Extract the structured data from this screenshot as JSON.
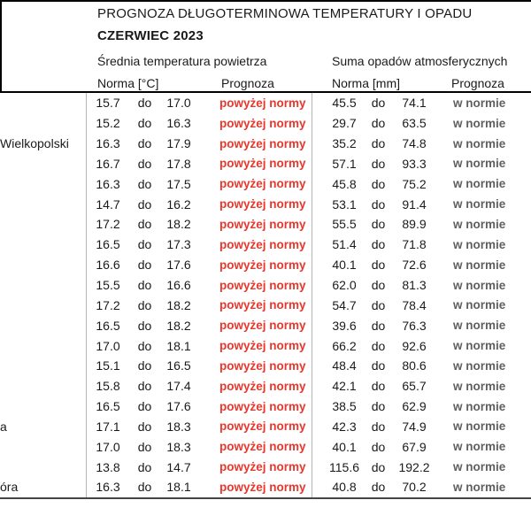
{
  "title": "PROGNOZA DŁUGOTERMINOWA TEMPERATURY I OPADU",
  "subtitle": "CZERWIEC 2023",
  "sections": {
    "temperature": {
      "header": "Średnia temperatura powietrza",
      "norma_label": "Norma [°C]",
      "prognoza_label": "Prognoza"
    },
    "precipitation": {
      "header": "Suma opadów atmosferycznych",
      "norma_label": "Norma [mm]",
      "prognoza_label": "Prognoza"
    }
  },
  "separator_word": "do",
  "colors": {
    "forecast_above_red": "#e8372c",
    "forecast_norm_gray": "#5f5f5f",
    "grid_gray": "#b5b5b5",
    "border_black": "#000000"
  },
  "rows": [
    {
      "city": "",
      "t_low": "15.7",
      "t_high": "17.0",
      "t_prog": "powyżej normy",
      "p_low": "45.5",
      "p_high": "74.1",
      "p_prog": "w normie"
    },
    {
      "city": "",
      "t_low": "15.2",
      "t_high": "16.3",
      "t_prog": "powyżej normy",
      "p_low": "29.7",
      "p_high": "63.5",
      "p_prog": "w normie"
    },
    {
      "city": "Wielkopolski",
      "t_low": "16.3",
      "t_high": "17.9",
      "t_prog": "powyżej normy",
      "p_low": "35.2",
      "p_high": "74.8",
      "p_prog": "w normie"
    },
    {
      "city": "",
      "t_low": "16.7",
      "t_high": "17.8",
      "t_prog": "powyżej normy",
      "p_low": "57.1",
      "p_high": "93.3",
      "p_prog": "w normie"
    },
    {
      "city": "",
      "t_low": "16.3",
      "t_high": "17.5",
      "t_prog": "powyżej normy",
      "p_low": "45.8",
      "p_high": "75.2",
      "p_prog": "w normie"
    },
    {
      "city": "",
      "t_low": "14.7",
      "t_high": "16.2",
      "t_prog": "powyżej normy",
      "p_low": "53.1",
      "p_high": "91.4",
      "p_prog": "w normie"
    },
    {
      "city": "",
      "t_low": "17.2",
      "t_high": "18.2",
      "t_prog": "powyżej normy",
      "p_low": "55.5",
      "p_high": "89.9",
      "p_prog": "w normie"
    },
    {
      "city": "",
      "t_low": "16.5",
      "t_high": "17.3",
      "t_prog": "powyżej normy",
      "p_low": "51.4",
      "p_high": "71.8",
      "p_prog": "w normie"
    },
    {
      "city": "",
      "t_low": "16.6",
      "t_high": "17.6",
      "t_prog": "powyżej normy",
      "p_low": "40.1",
      "p_high": "72.6",
      "p_prog": "w normie"
    },
    {
      "city": "",
      "t_low": "15.5",
      "t_high": "16.6",
      "t_prog": "powyżej normy",
      "p_low": "62.0",
      "p_high": "81.3",
      "p_prog": "w normie"
    },
    {
      "city": "",
      "t_low": "17.2",
      "t_high": "18.2",
      "t_prog": "powyżej normy",
      "p_low": "54.7",
      "p_high": "78.4",
      "p_prog": "w normie"
    },
    {
      "city": "",
      "t_low": "16.5",
      "t_high": "18.2",
      "t_prog": "powyżej normy",
      "p_low": "39.6",
      "p_high": "76.3",
      "p_prog": "w normie"
    },
    {
      "city": "",
      "t_low": "17.0",
      "t_high": "18.1",
      "t_prog": "powyżej normy",
      "p_low": "66.2",
      "p_high": "92.6",
      "p_prog": "w normie"
    },
    {
      "city": "",
      "t_low": "15.1",
      "t_high": "16.5",
      "t_prog": "powyżej normy",
      "p_low": "48.4",
      "p_high": "80.6",
      "p_prog": "w normie"
    },
    {
      "city": "",
      "t_low": "15.8",
      "t_high": "17.4",
      "t_prog": "powyżej normy",
      "p_low": "42.1",
      "p_high": "65.7",
      "p_prog": "w normie"
    },
    {
      "city": "",
      "t_low": "16.5",
      "t_high": "17.6",
      "t_prog": "powyżej normy",
      "p_low": "38.5",
      "p_high": "62.9",
      "p_prog": "w normie"
    },
    {
      "city": "a",
      "t_low": "17.1",
      "t_high": "18.3",
      "t_prog": "powyżej normy",
      "p_low": "42.3",
      "p_high": "74.9",
      "p_prog": "w normie"
    },
    {
      "city": "",
      "t_low": "17.0",
      "t_high": "18.3",
      "t_prog": "powyżej normy",
      "p_low": "40.1",
      "p_high": "67.9",
      "p_prog": "w normie"
    },
    {
      "city": "",
      "t_low": "13.8",
      "t_high": "14.7",
      "t_prog": "powyżej normy",
      "p_low": "115.6",
      "p_high": "192.2",
      "p_prog": "w normie"
    },
    {
      "city": "óra",
      "t_low": "16.3",
      "t_high": "18.1",
      "t_prog": "powyżej normy",
      "p_low": "40.8",
      "p_high": "70.2",
      "p_prog": "w normie"
    }
  ]
}
